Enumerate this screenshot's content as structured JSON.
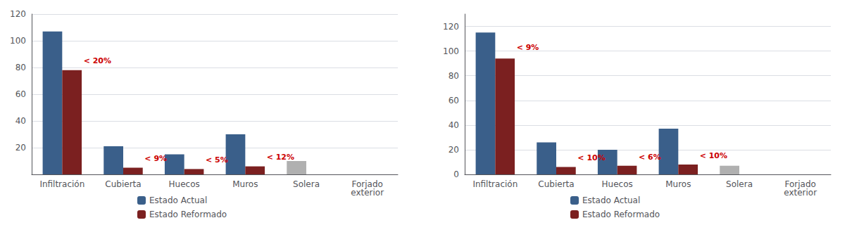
{
  "chart_data": [
    {
      "type": "bar",
      "categories": [
        "Infiltración",
        "Cubierta",
        "Huecos",
        "Muros",
        "Solera",
        "Forjado\nexterior"
      ],
      "series": [
        {
          "name": "Estado Actual",
          "color": "#3A5F8A",
          "colors": [
            "#3A5F8A",
            "#3A5F8A",
            "#3A5F8A",
            "#3A5F8A",
            "#B0B0B0",
            "#3A5F8A"
          ],
          "values": [
            107,
            21,
            15,
            30,
            10,
            0
          ]
        },
        {
          "name": "Estado Reformado",
          "color": "#7B2020",
          "colors": [
            "#7B2020",
            "#7B2020",
            "#7B2020",
            "#7B2020",
            "#B0B0B0",
            "#B0B0B0"
          ],
          "values": [
            78,
            5,
            4,
            6,
            0,
            0
          ]
        }
      ],
      "annotations": [
        {
          "text": "< 20%",
          "category": "Infiltración",
          "y": 82,
          "color": "#CC0000"
        },
        {
          "text": "< 9%",
          "category": "Cubierta",
          "y": 9,
          "color": "#CC0000"
        },
        {
          "text": "< 5%",
          "category": "Huecos",
          "y": 8,
          "color": "#CC0000"
        },
        {
          "text": "< 12%",
          "category": "Muros",
          "y": 10,
          "color": "#CC0000"
        }
      ],
      "ylim": [
        0,
        120
      ],
      "yticks": [
        20,
        40,
        60,
        80,
        100,
        120
      ],
      "grid": true,
      "legend": "bottom"
    },
    {
      "type": "bar",
      "categories": [
        "Infiltración",
        "Cubierta",
        "Huecos",
        "Muros",
        "Solera",
        "Forjado\nexterior"
      ],
      "series": [
        {
          "name": "Estado Actual",
          "color": "#3A5F8A",
          "colors": [
            "#3A5F8A",
            "#3A5F8A",
            "#3A5F8A",
            "#3A5F8A",
            "#B0B0B0",
            "#3A5F8A"
          ],
          "values": [
            115,
            26,
            20,
            37,
            7,
            0
          ]
        },
        {
          "name": "Estado Reformado",
          "color": "#7B2020",
          "colors": [
            "#7B2020",
            "#7B2020",
            "#7B2020",
            "#7B2020",
            "#B0B0B0",
            "#B0B0B0"
          ],
          "values": [
            94,
            6,
            7,
            8,
            0,
            0
          ]
        }
      ],
      "annotations": [
        {
          "text": "< 9%",
          "category": "Infiltración",
          "y": 100,
          "color": "#CC0000"
        },
        {
          "text": "< 10%",
          "category": "Cubierta",
          "y": 10,
          "color": "#CC0000"
        },
        {
          "text": "< 6%",
          "category": "Huecos",
          "y": 11,
          "color": "#CC0000"
        },
        {
          "text": "< 10%",
          "category": "Muros",
          "y": 12,
          "color": "#CC0000"
        }
      ],
      "ylim": [
        0,
        130
      ],
      "yticks": [
        0,
        20,
        40,
        60,
        80,
        100,
        120
      ],
      "grid": true,
      "legend": "bottom"
    }
  ]
}
